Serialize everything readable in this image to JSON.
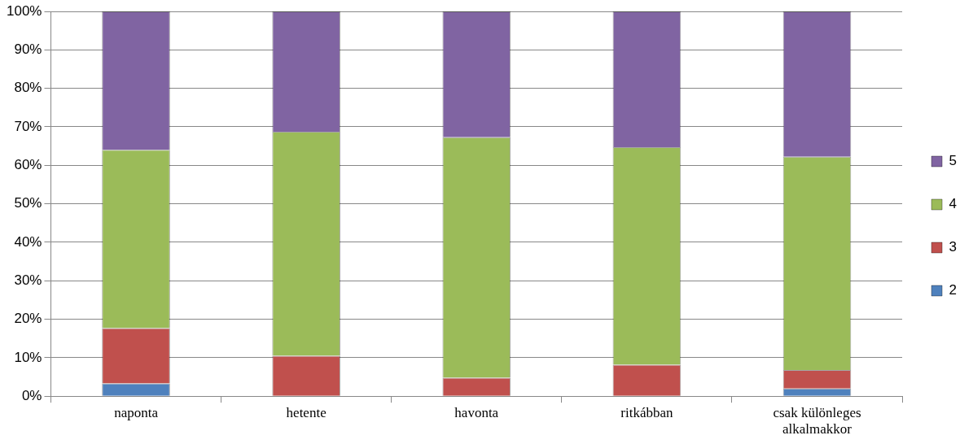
{
  "chart_data": {
    "type": "bar",
    "stacked": true,
    "categories": [
      "naponta",
      "hetente",
      "havonta",
      "ritkábban",
      "csak különleges alkalmakkor"
    ],
    "series": [
      {
        "name": "2",
        "color": "#4f81bd",
        "values": [
          3.3,
          0,
          0,
          0,
          2
        ]
      },
      {
        "name": "3",
        "color": "#c0504d",
        "values": [
          14.4,
          10.5,
          4.8,
          8.2,
          4.8
        ]
      },
      {
        "name": "4",
        "color": "#9bbb59",
        "values": [
          46.3,
          58.2,
          62.5,
          56.5,
          55.4
        ]
      },
      {
        "name": "5",
        "color": "#8064a2",
        "values": [
          36,
          31.3,
          32.7,
          35.3,
          37.8
        ]
      }
    ],
    "ylim": [
      0,
      100
    ],
    "yticks": [
      {
        "value": 0,
        "label": "0%"
      },
      {
        "value": 10,
        "label": "10%"
      },
      {
        "value": 20,
        "label": "20%"
      },
      {
        "value": 30,
        "label": "30%"
      },
      {
        "value": 40,
        "label": "40%"
      },
      {
        "value": 50,
        "label": "50%"
      },
      {
        "value": 60,
        "label": "60%"
      },
      {
        "value": 70,
        "label": "70%"
      },
      {
        "value": 80,
        "label": "80%"
      },
      {
        "value": 90,
        "label": "90%"
      },
      {
        "value": 100,
        "label": "100%"
      }
    ],
    "grid": "y",
    "legend": "right"
  }
}
